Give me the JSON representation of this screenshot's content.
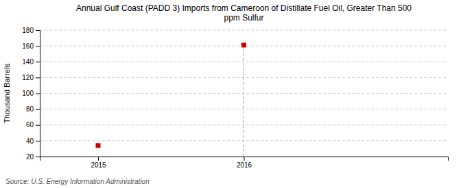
{
  "chart_data": {
    "type": "scatter",
    "title": "Annual Gulf Coast (PADD 3) Imports from Cameroon of Distillate Fuel Oil, Greater Than 500\nppm Sulfur",
    "ylabel": "Thousand Barrels",
    "source": "Source: U.S. Energy Information Administration",
    "x": [
      2015,
      2016
    ],
    "values": [
      34,
      161
    ],
    "color": "#cc0000",
    "marker": "square",
    "xlim": [
      2014.6,
      2017.4
    ],
    "xticks": [
      2015,
      2016
    ],
    "ylim": [
      20,
      180
    ],
    "yticks": [
      20,
      40,
      60,
      80,
      100,
      120,
      140,
      160,
      180
    ],
    "vline": 2016,
    "grid": true
  }
}
